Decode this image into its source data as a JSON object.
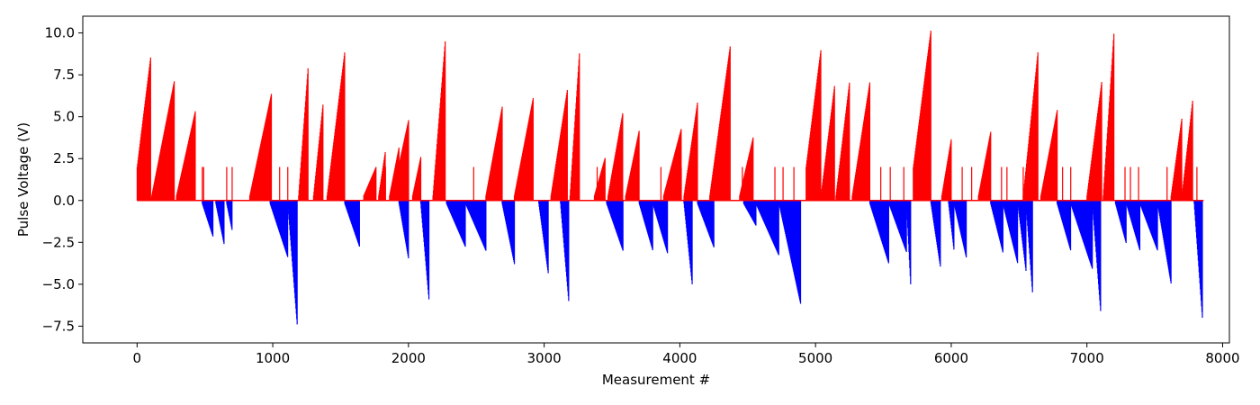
{
  "chart_data": {
    "type": "bar",
    "title": "",
    "xlabel": "Measurement #",
    "ylabel": "Pulse Voltage (V)",
    "xlim": [
      -400,
      8050
    ],
    "ylim": [
      -8.5,
      11.0
    ],
    "x_ticks": [
      0,
      1000,
      2000,
      3000,
      4000,
      5000,
      6000,
      7000,
      8000
    ],
    "y_ticks": [
      -7.5,
      -5.0,
      -2.5,
      0.0,
      2.5,
      5.0,
      7.5,
      10.0
    ],
    "x_tick_labels": [
      "0",
      "1000",
      "2000",
      "3000",
      "4000",
      "5000",
      "6000",
      "7000",
      "8000"
    ],
    "y_tick_labels": [
      "−7.5",
      "−5.0",
      "−2.5",
      "0.0",
      "2.5",
      "5.0",
      "7.5",
      "10.0"
    ],
    "grid": false,
    "legend": "none",
    "colors": {
      "positive": "#ff0000",
      "negative": "#0000ff"
    },
    "series": [
      {
        "color": "#ff0000",
        "ramps": [
          [
            0,
            100,
            2.0,
            8.6
          ],
          [
            105,
            275,
            0.2,
            7.2
          ],
          [
            290,
            430,
            0.3,
            5.4
          ],
          [
            830,
            990,
            0.3,
            6.4
          ],
          [
            1190,
            1260,
            0.3,
            8.0
          ],
          [
            1300,
            1370,
            0.3,
            5.8
          ],
          [
            1400,
            1530,
            0.3,
            8.9
          ],
          [
            1670,
            1760,
            0.3,
            2.0
          ],
          [
            1780,
            1830,
            0.3,
            3.0
          ],
          [
            1860,
            1930,
            0.3,
            3.2
          ],
          [
            1930,
            1930,
            0.0,
            0.0
          ],
          [
            1940,
            1930,
            0.0,
            0.0
          ],
          [
            1880,
            1930,
            0.0,
            0.0
          ],
          [
            1880,
            2000,
            0.3,
            4.8
          ],
          [
            2030,
            2090,
            0.3,
            2.6
          ],
          [
            2180,
            2270,
            0.3,
            9.5
          ],
          [
            2570,
            2690,
            0.3,
            5.6
          ],
          [
            2780,
            2920,
            0.3,
            6.2
          ],
          [
            3050,
            3170,
            0.3,
            6.6
          ],
          [
            3190,
            3260,
            0.3,
            8.9
          ],
          [
            3370,
            3450,
            0.3,
            2.6
          ],
          [
            3470,
            3580,
            0.3,
            5.3
          ],
          [
            3600,
            3700,
            0.3,
            4.2
          ],
          [
            3880,
            4010,
            0.3,
            4.3
          ],
          [
            4030,
            4130,
            0.3,
            5.9
          ],
          [
            4220,
            4370,
            0.3,
            9.2
          ],
          [
            4440,
            4540,
            0.3,
            3.8
          ],
          [
            4930,
            5040,
            2.0,
            9.1
          ],
          [
            5040,
            5140,
            0.3,
            6.9
          ],
          [
            5150,
            5250,
            0.3,
            7.1
          ],
          [
            5270,
            5400,
            0.3,
            7.1
          ],
          [
            5720,
            5850,
            2.0,
            10.2
          ],
          [
            5930,
            6000,
            0.3,
            3.7
          ],
          [
            6200,
            6290,
            0.3,
            4.1
          ],
          [
            6530,
            6640,
            0.3,
            9.0
          ],
          [
            6660,
            6780,
            0.3,
            5.4
          ],
          [
            7000,
            7110,
            0.3,
            7.2
          ],
          [
            7120,
            7200,
            0.3,
            10.2
          ],
          [
            7620,
            7700,
            0.3,
            5.0
          ],
          [
            7700,
            7780,
            0.3,
            6.1
          ]
        ],
        "spikes": [
          [
            480,
            2.0
          ],
          [
            490,
            2.0
          ],
          [
            660,
            2.0
          ],
          [
            700,
            2.0
          ],
          [
            1050,
            2.0
          ],
          [
            1110,
            2.0
          ],
          [
            1830,
            2.0
          ],
          [
            2480,
            2.0
          ],
          [
            3140,
            2.0
          ],
          [
            3390,
            2.0
          ],
          [
            3860,
            2.0
          ],
          [
            4010,
            2.0
          ],
          [
            4460,
            2.0
          ],
          [
            4700,
            2.0
          ],
          [
            4760,
            2.0
          ],
          [
            4840,
            2.0
          ],
          [
            5650,
            2.0
          ],
          [
            5550,
            2.0
          ],
          [
            5480,
            2.0
          ],
          [
            5980,
            2.0
          ],
          [
            6080,
            2.0
          ],
          [
            6150,
            2.0
          ],
          [
            6280,
            2.0
          ],
          [
            6370,
            2.0
          ],
          [
            6410,
            2.0
          ],
          [
            6530,
            2.0
          ],
          [
            6820,
            2.0
          ],
          [
            6880,
            2.0
          ],
          [
            7030,
            2.0
          ],
          [
            7280,
            2.0
          ],
          [
            7320,
            2.0
          ],
          [
            7380,
            2.0
          ],
          [
            7590,
            2.0
          ],
          [
            7810,
            2.0
          ]
        ]
      },
      {
        "color": "#0000ff",
        "ramps": [
          [
            480,
            560,
            -0.2,
            -2.2
          ],
          [
            580,
            640,
            -0.2,
            -2.6
          ],
          [
            660,
            700,
            -0.2,
            -1.8
          ],
          [
            980,
            1110,
            -0.2,
            -3.4
          ],
          [
            1110,
            1180,
            -0.2,
            -7.5
          ],
          [
            1530,
            1640,
            -0.2,
            -2.8
          ],
          [
            1930,
            2000,
            -0.2,
            -3.5
          ],
          [
            2090,
            2150,
            -0.2,
            -5.9
          ],
          [
            2280,
            2420,
            -0.2,
            -2.8
          ],
          [
            2420,
            2570,
            -0.2,
            -3.0
          ],
          [
            2690,
            2780,
            -0.2,
            -3.8
          ],
          [
            2960,
            3030,
            -0.2,
            -4.4
          ],
          [
            3120,
            3180,
            -0.2,
            -6.0
          ],
          [
            3460,
            3580,
            -0.2,
            -3.0
          ],
          [
            3700,
            3800,
            -0.2,
            -3.0
          ],
          [
            3800,
            3910,
            -0.2,
            -3.2
          ],
          [
            4030,
            4090,
            -0.2,
            -5.0
          ],
          [
            4130,
            4250,
            -0.2,
            -2.8
          ],
          [
            4470,
            4560,
            -0.2,
            -1.5
          ],
          [
            4560,
            4730,
            -0.2,
            -3.3
          ],
          [
            4730,
            4890,
            -0.2,
            -6.2
          ],
          [
            5400,
            5540,
            -0.2,
            -3.8
          ],
          [
            5540,
            5670,
            -0.2,
            -3.1
          ],
          [
            5670,
            5700,
            -0.2,
            -5.0
          ],
          [
            5850,
            5920,
            -0.2,
            -4.0
          ],
          [
            5980,
            6020,
            -0.2,
            -3.0
          ],
          [
            6020,
            6110,
            -0.2,
            -3.4
          ],
          [
            6290,
            6380,
            -0.2,
            -3.1
          ],
          [
            6380,
            6490,
            -0.2,
            -3.8
          ],
          [
            6490,
            6550,
            -0.2,
            -4.2
          ],
          [
            6550,
            6600,
            -0.2,
            -5.7
          ],
          [
            6780,
            6880,
            -0.2,
            -3.0
          ],
          [
            6880,
            7040,
            -0.2,
            -4.1
          ],
          [
            7040,
            7100,
            -0.2,
            -6.6
          ],
          [
            7210,
            7290,
            -0.2,
            -2.6
          ],
          [
            7290,
            7390,
            -0.2,
            -3.0
          ],
          [
            7390,
            7520,
            -0.2,
            -3.0
          ],
          [
            7520,
            7620,
            -0.2,
            -5.0
          ],
          [
            7790,
            7850,
            -0.2,
            -7.0
          ]
        ]
      }
    ]
  }
}
